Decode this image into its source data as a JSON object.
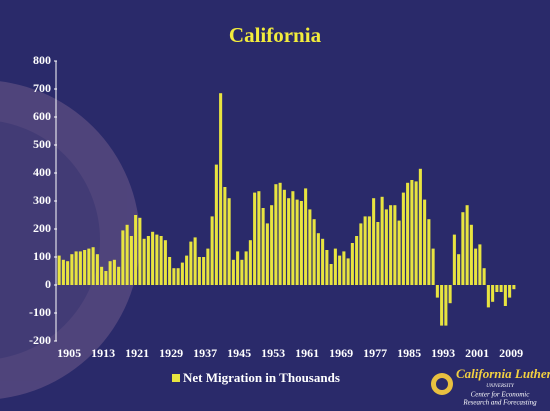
{
  "chart_data": {
    "type": "bar",
    "title": "California",
    "categories": [
      "1905",
      null,
      null,
      null,
      null,
      null,
      null,
      null,
      "1913",
      null,
      null,
      null,
      null,
      null,
      null,
      null,
      "1921",
      null,
      null,
      null,
      null,
      null,
      null,
      null,
      "1929",
      null,
      null,
      null,
      null,
      null,
      null,
      null,
      "1937",
      null,
      null,
      null,
      null,
      null,
      null,
      null,
      "1945",
      null,
      null,
      null,
      null,
      null,
      null,
      null,
      "1953",
      null,
      null,
      null,
      null,
      null,
      null,
      null,
      "1961",
      null,
      null,
      null,
      null,
      null,
      null,
      null,
      "1969",
      null,
      null,
      null,
      null,
      null,
      null,
      null,
      "1977",
      null,
      null,
      null,
      null,
      null,
      null,
      null,
      "1985",
      null,
      null,
      null,
      null,
      null,
      null,
      null,
      "1993",
      null,
      null,
      null,
      null,
      null,
      null,
      null,
      "2001",
      null,
      null,
      null,
      null,
      null,
      null,
      null,
      "2009",
      null,
      null,
      null
    ],
    "series": [
      {
        "name": "Net Migration in Thousands",
        "color": "#e8e440",
        "values": [
          105,
          90,
          85,
          110,
          120,
          120,
          125,
          130,
          135,
          110,
          65,
          50,
          85,
          90,
          65,
          195,
          215,
          175,
          250,
          240,
          165,
          175,
          190,
          180,
          175,
          160,
          100,
          60,
          60,
          80,
          105,
          155,
          170,
          100,
          100,
          130,
          245,
          430,
          685,
          350,
          310,
          90,
          120,
          90,
          120,
          160,
          330,
          335,
          275,
          220,
          285,
          360,
          365,
          340,
          310,
          335,
          305,
          300,
          345,
          270,
          235,
          185,
          165,
          125,
          75,
          130,
          105,
          120,
          95,
          150,
          175,
          220,
          245,
          245,
          310,
          225,
          315,
          270,
          285,
          285,
          230,
          330,
          365,
          375,
          370,
          415,
          305,
          235,
          130,
          -45,
          -145,
          -145,
          -65,
          180,
          110,
          260,
          285,
          215,
          130,
          145,
          60,
          -80,
          -60,
          -25,
          -25,
          -75,
          -45,
          -15
        ]
      }
    ],
    "ylim": [
      -200,
      800
    ],
    "yticks": [
      -200,
      -100,
      0,
      100,
      200,
      300,
      400,
      500,
      600,
      700,
      800
    ],
    "grid": false,
    "legend": "bottom"
  },
  "logo": {
    "name": "California Lutheran",
    "sub": "UNIVERSITY",
    "line1": "Center for Economic",
    "line2": "Research and Forecasting"
  }
}
